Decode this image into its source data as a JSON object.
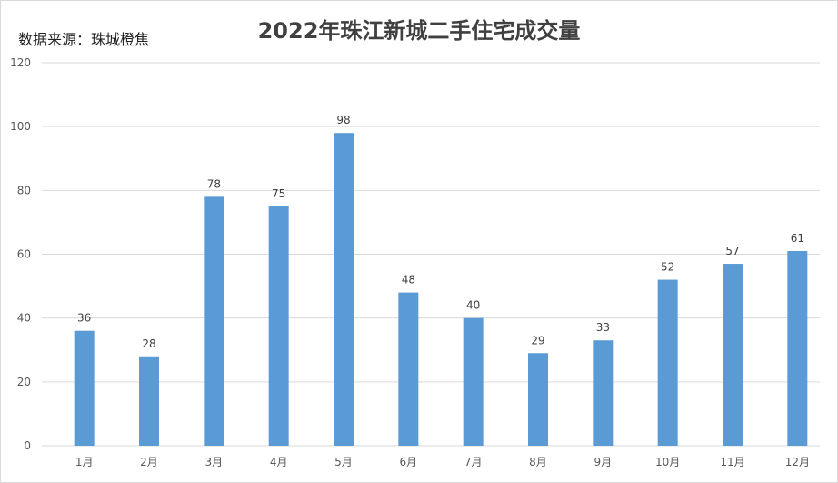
{
  "chart_data": {
    "type": "bar",
    "title": "2022年珠江新城二手住宅成交量",
    "source_note": "数据来源：珠城橙焦",
    "categories": [
      "1月",
      "2月",
      "3月",
      "4月",
      "5月",
      "6月",
      "7月",
      "8月",
      "9月",
      "10月",
      "11月",
      "12月"
    ],
    "values": [
      36,
      28,
      78,
      75,
      98,
      48,
      40,
      29,
      33,
      52,
      57,
      61
    ],
    "ylim": [
      0,
      120
    ],
    "yticks": [
      0,
      20,
      40,
      60,
      80,
      100,
      120
    ],
    "grid": true,
    "legend": "none",
    "bar_color": "#5b9bd5",
    "grid_color": "#d9d9d9"
  }
}
